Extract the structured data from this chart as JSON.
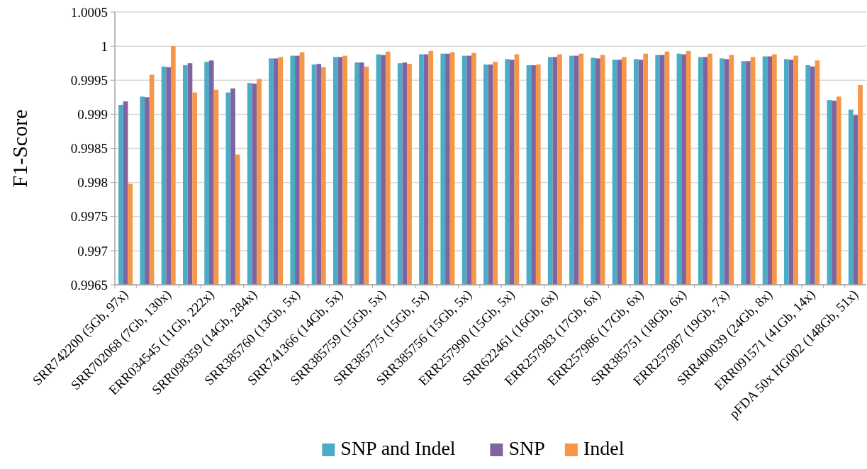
{
  "chart_data": {
    "type": "bar",
    "ylabel": "F1-Score",
    "categories": [
      "SRR742200 (5Gb, 97x)",
      null,
      "SRR702068 (7Gb, 130x)",
      null,
      "ERR034545 (11Gb, 222x)",
      null,
      "SRR098359 (14Gb, 284x)",
      null,
      "SRR385760 (13Gb, 5x)",
      null,
      "SRR741366 (14Gb, 5x)",
      null,
      "SRR385759 (15Gb, 5x)",
      null,
      "SRR385775 (15Gb, 5x)",
      null,
      "SRR385756 (15Gb, 5x)",
      null,
      "ERR257990 (15Gb, 5x)",
      null,
      "SRR622461 (16Gb, 6x)",
      null,
      "ERR257983 (17Gb, 6x)",
      null,
      "ERR257986 (17Gb, 6x)",
      null,
      "SRR385751 (18Gb, 6x)",
      null,
      "ERR257987 (19Gb, 7x)",
      null,
      "SRR400039 (24Gb, 8x)",
      null,
      "ERR091571 (41Gb, 14x)",
      null,
      "pFDA 50x HG002 (148Gb, 51x)"
    ],
    "series": [
      {
        "name": "SNP and Indel",
        "color": "#4bacc6",
        "values": [
          0.99914,
          0.99926,
          0.9997,
          0.99972,
          0.99977,
          0.99932,
          0.99946,
          0.99982,
          0.99986,
          0.99973,
          0.99984,
          0.99976,
          0.99988,
          0.99975,
          0.99988,
          0.99989,
          0.99986,
          0.99973,
          0.99981,
          0.99972,
          0.99984,
          0.99986,
          0.99983,
          0.9998,
          0.99981,
          0.99987,
          0.99989,
          0.99984,
          0.99982,
          0.99978,
          0.99985,
          0.99981,
          0.99972,
          0.99921,
          0.99907
        ]
      },
      {
        "name": "SNP",
        "color": "#8064a2",
        "values": [
          0.99919,
          0.99925,
          0.99969,
          0.99975,
          0.99979,
          0.99938,
          0.99945,
          0.99982,
          0.99986,
          0.99974,
          0.99984,
          0.99976,
          0.99987,
          0.99976,
          0.99988,
          0.99989,
          0.99986,
          0.99973,
          0.9998,
          0.99972,
          0.99984,
          0.99986,
          0.99982,
          0.9998,
          0.9998,
          0.99987,
          0.99988,
          0.99984,
          0.99981,
          0.99978,
          0.99985,
          0.9998,
          0.9997,
          0.9992,
          0.99899
        ]
      },
      {
        "name": "Indel",
        "color": "#f79646",
        "values": [
          0.99798,
          0.99958,
          1.0,
          0.99932,
          0.99936,
          0.99841,
          0.99952,
          0.99984,
          0.99991,
          0.99969,
          0.99986,
          0.9997,
          0.99992,
          0.99974,
          0.99993,
          0.99991,
          0.9999,
          0.99977,
          0.99988,
          0.99973,
          0.99988,
          0.99989,
          0.99987,
          0.99984,
          0.99989,
          0.99992,
          0.99993,
          0.99989,
          0.99987,
          0.99984,
          0.99988,
          0.99986,
          0.99979,
          0.99926,
          0.99943
        ]
      }
    ],
    "ylim": [
      0.9965,
      1.0005
    ],
    "yticks": [
      0.9965,
      0.997,
      0.9975,
      0.998,
      0.9985,
      0.999,
      0.9995,
      1,
      1.0005
    ],
    "grid": "y",
    "legend": "bottom"
  }
}
